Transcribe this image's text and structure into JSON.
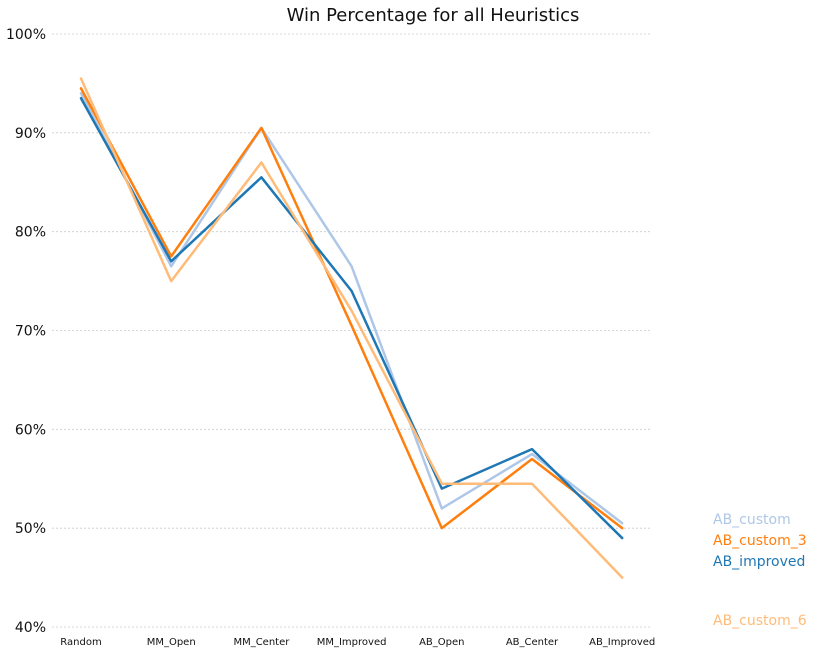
{
  "chart_data": {
    "type": "line",
    "title": "Win Percentage for all Heuristics",
    "xlabel": "",
    "ylabel": "",
    "categories": [
      "Random",
      "MM_Open",
      "MM_Center",
      "MM_Improved",
      "AB_Open",
      "AB_Center",
      "AB_Improved"
    ],
    "ylim": [
      40,
      100
    ],
    "yticks": [
      40,
      50,
      60,
      70,
      80,
      90,
      100
    ],
    "ytick_labels": [
      "40%",
      "50%",
      "60%",
      "70%",
      "80%",
      "90%",
      "100%"
    ],
    "grid": true,
    "legend_placement": "right",
    "series": [
      {
        "name": "AB_custom",
        "color": "#aec7e8",
        "values": [
          94.0,
          76.5,
          90.5,
          76.5,
          52.0,
          57.5,
          50.5
        ]
      },
      {
        "name": "AB_custom_3",
        "color": "#ff7f0e",
        "values": [
          94.5,
          77.5,
          90.5,
          70.5,
          50.0,
          57.0,
          50.0
        ]
      },
      {
        "name": "AB_improved",
        "color": "#1f77b4",
        "values": [
          93.5,
          77.0,
          85.5,
          74.0,
          54.0,
          58.0,
          49.0
        ]
      },
      {
        "name": "AB_custom_6",
        "color": "#ffbb78",
        "values": [
          95.5,
          75.0,
          87.0,
          72.0,
          54.5,
          54.5,
          45.0
        ]
      }
    ]
  }
}
